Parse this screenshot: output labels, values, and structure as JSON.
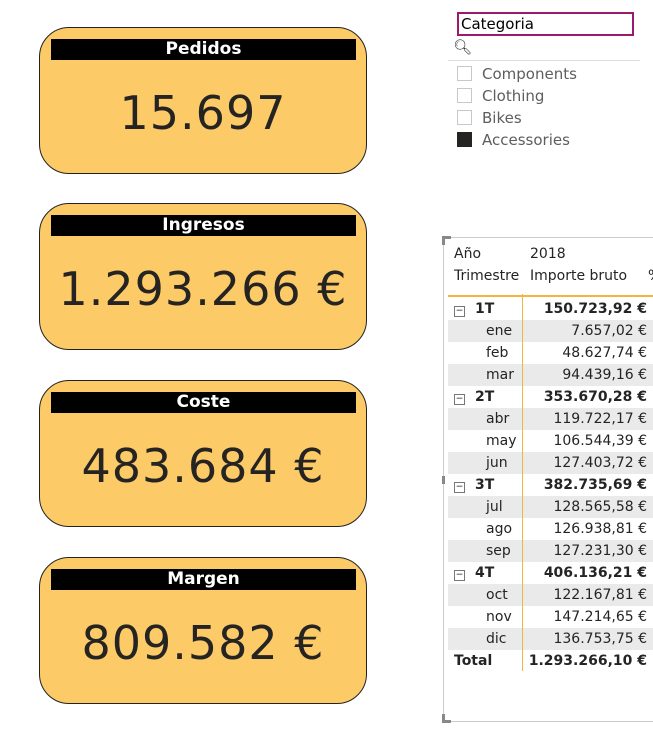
{
  "cards": [
    {
      "title": "Pedidos",
      "value": "15.697"
    },
    {
      "title": "Ingresos",
      "value": "1.293.266 €"
    },
    {
      "title": "Coste",
      "value": "483.684 €"
    },
    {
      "title": "Margen",
      "value": "809.582 €"
    }
  ],
  "slicer": {
    "title": "Categoria",
    "search_icon": "search-icon",
    "options": [
      {
        "label": "Components",
        "checked": false
      },
      {
        "label": "Clothing",
        "checked": false
      },
      {
        "label": "Bikes",
        "checked": false
      },
      {
        "label": "Accessories",
        "checked": true
      }
    ]
  },
  "matrix": {
    "year_label": "Año",
    "year_value": "2018",
    "col1": "Trimestre",
    "col2": "Importe bruto",
    "col3": "%",
    "rows": [
      {
        "label": "1T",
        "value": "150.723,92 €",
        "level": 0
      },
      {
        "label": "ene",
        "value": "7.657,02 €",
        "level": 1
      },
      {
        "label": "feb",
        "value": "48.627,74 €",
        "level": 1
      },
      {
        "label": "mar",
        "value": "94.439,16 €",
        "level": 1
      },
      {
        "label": "2T",
        "value": "353.670,28 €",
        "level": 0
      },
      {
        "label": "abr",
        "value": "119.722,17 €",
        "level": 1
      },
      {
        "label": "may",
        "value": "106.544,39 €",
        "level": 1
      },
      {
        "label": "jun",
        "value": "127.403,72 €",
        "level": 1
      },
      {
        "label": "3T",
        "value": "382.735,69 €",
        "level": 0
      },
      {
        "label": "jul",
        "value": "128.565,58 €",
        "level": 1
      },
      {
        "label": "ago",
        "value": "126.938,81 €",
        "level": 1
      },
      {
        "label": "sep",
        "value": "127.231,30 €",
        "level": 1
      },
      {
        "label": "4T",
        "value": "406.136,21 €",
        "level": 0
      },
      {
        "label": "oct",
        "value": "122.167,81 €",
        "level": 1
      },
      {
        "label": "nov",
        "value": "147.214,65 €",
        "level": 1
      },
      {
        "label": "dic",
        "value": "136.753,75 €",
        "level": 1
      }
    ],
    "total": {
      "label": "Total",
      "value": "1.293.266,10 €"
    }
  }
}
